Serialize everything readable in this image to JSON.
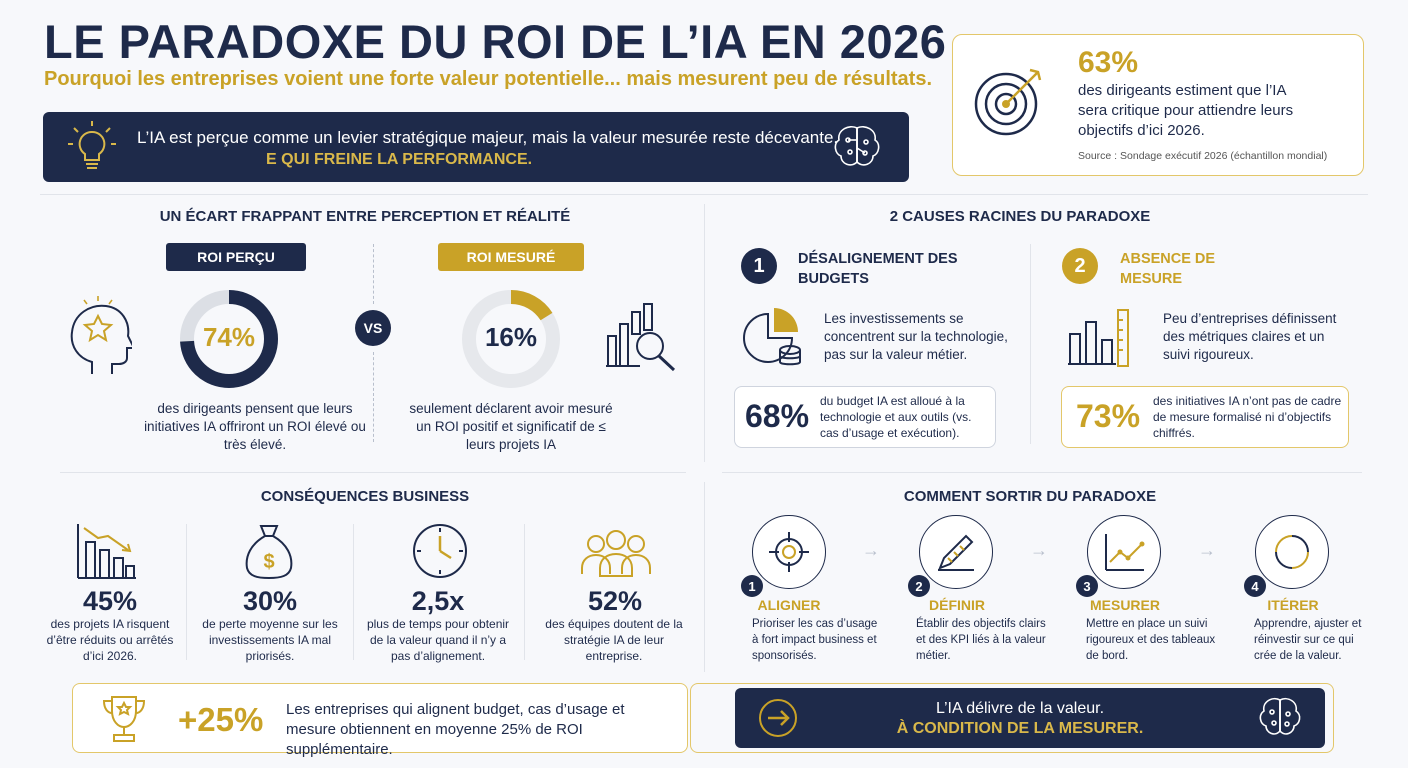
{
  "header": {
    "title": "LE PARADOXE DU ROI DE L’IA EN 2026",
    "subtitle": "Pourquoi les entreprises voient une forte valeur potentielle... mais mesurent peu de résultats.",
    "banner_line1": "L’IA est perçue comme un levier stratégique majeur, mais la valeur mesurée reste décevante.",
    "banner_line2": "E QUI FREINE LA PERFORMANCE."
  },
  "stat_card": {
    "percent": "63%",
    "text": "des dirigeants estiment que l’IA sera critique pour attiendre leurs objectifs d’ici 2026.",
    "source": "Source : Sondage exécutif 2026 (échantillon mondial)"
  },
  "gap": {
    "title": "UN ÉCART FRAPPANT ENTRE PERCEPTION ET RÉALITÉ",
    "perceived": {
      "label": "ROI PERÇU",
      "percent": "74%",
      "value": 74,
      "text": "des dirigeants pensent que leurs initiatives IA offriront un ROI élevé ou très élevé."
    },
    "vs": "VS",
    "measured": {
      "label": "ROI MESURÉ",
      "percent": "16%",
      "value": 16,
      "text": "seulement déclarent avoir mesuré un ROI positif et significatif de ≤ leurs projets IA"
    }
  },
  "causes": {
    "title": "2 CAUSES RACINES DU PARADOXE",
    "items": [
      {
        "num": "1",
        "title": "DÉSALIGNEMENT DES BUDGETS",
        "text": "Les investissements se concentrent sur la technologie, pas sur la valeur métier.",
        "stat": "68%",
        "stat_text": "du budget IA est alloué à la technologie et aux outils (vs. cas d’usage et exécution)."
      },
      {
        "num": "2",
        "title": "ABSENCE DE MESURE",
        "text": "Peu d’entreprises définissent des métriques claires et un suivi rigoureux.",
        "stat": "73%",
        "stat_text": "des initiatives IA n’ont pas de cadre de mesure formalisé ni d’objectifs chiffrés."
      }
    ]
  },
  "consequences": {
    "title": "CONSÉQUENCES BUSINESS",
    "items": [
      {
        "value": "45%",
        "text": "des projets IA risquent d’être réduits ou arrêtés d’ici 2026.",
        "icon": "declining-bar-chart-icon"
      },
      {
        "value": "30%",
        "text": "de perte moyenne sur les investissements IA mal priorisés.",
        "icon": "money-bag-icon"
      },
      {
        "value": "2,5x",
        "text": "plus de temps pour obtenir de la valeur quand il n’y a pas d’alignement.",
        "icon": "clock-icon"
      },
      {
        "value": "52%",
        "text": "des équipes doutent de la stratégie IA de leur entreprise.",
        "icon": "people-icon"
      }
    ]
  },
  "solutions": {
    "title": "COMMENT SORTIR DU PARADOXE",
    "steps": [
      {
        "num": "1",
        "title": "ALIGNER",
        "text": "Prioriser les cas d’usage à fort impact business et sponsorisés."
      },
      {
        "num": "2",
        "title": "DÉFINIR",
        "text": "Établir des objectifs clairs et des KPI liés à la valeur métier."
      },
      {
        "num": "3",
        "title": "MESURER",
        "text": "Mettre en place un suivi rigoureux et des tableaux de bord."
      },
      {
        "num": "4",
        "title": "ITÉRER",
        "text": "Apprendre, ajuster et réinvestir sur ce qui crée de la valeur."
      }
    ]
  },
  "footer": {
    "percent": "+25%",
    "text": "Les entreprises qui alignent budget, cas d’usage et mesure obtiennent en moyenne 25% de ROI supplémentaire.",
    "cta_line1": "L’IA délivre de la valeur.",
    "cta_line2": "À CONDITION DE LA MESURER."
  },
  "colors": {
    "navy": "#1e2a4a",
    "gold": "#c9a227",
    "light_gray": "#e1e4ea"
  }
}
